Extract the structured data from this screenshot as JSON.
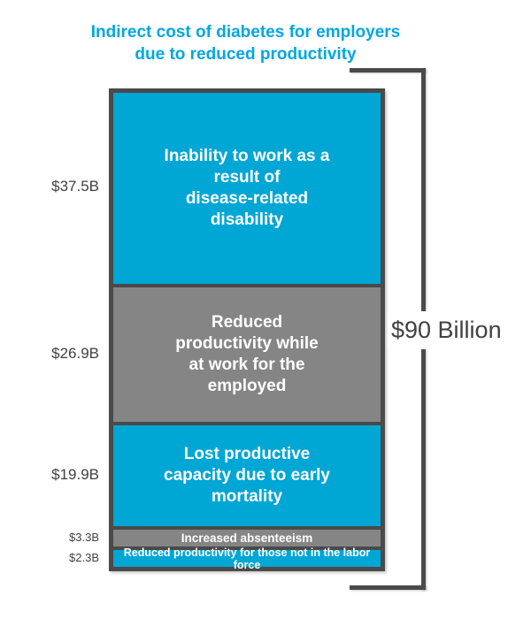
{
  "title": {
    "lines": [
      "Indirect cost of diabetes for employers",
      "due to reduced productivity"
    ],
    "text": "Indirect cost of diabetes for employers due to reduced productivity"
  },
  "colors": {
    "cyan": "#00A6D4",
    "cyan_title": "#00A7DF",
    "gray": "#858585",
    "dark_border": "#4A4A4A",
    "dark_text": "#414141",
    "segment_text": "#FFFFFF"
  },
  "chart_data": {
    "type": "bar",
    "variant": "single-column-stacked",
    "title": "Indirect cost of diabetes for employers due to reduced productivity",
    "unit": "USD billions",
    "total": 90,
    "total_label": "$90 Billion",
    "legend_position": "none",
    "grid": false,
    "segments": [
      {
        "value": 37.5,
        "value_label": "$37.5B",
        "label": "Inability to work as a result of disease-related disability",
        "lines": [
          "Inability to work as a",
          "result of",
          "disease-related",
          "disability"
        ],
        "color_key": "cyan"
      },
      {
        "value": 26.9,
        "value_label": "$26.9B",
        "label": "Reduced productivity while at work for the employed",
        "lines": [
          "Reduced",
          "productivity while",
          "at work for the",
          "employed"
        ],
        "color_key": "gray"
      },
      {
        "value": 19.9,
        "value_label": "$19.9B",
        "label": "Lost productive capacity due to early mortality",
        "lines": [
          "Lost productive",
          "capacity due to early",
          "mortality"
        ],
        "color_key": "cyan"
      },
      {
        "value": 3.3,
        "value_label": "$3.3B",
        "label": "Increased absenteeism",
        "lines": [
          "Increased absenteeism"
        ],
        "color_key": "gray"
      },
      {
        "value": 2.3,
        "value_label": "$2.3B",
        "label": "Reduced productivity for those not in the labor force",
        "lines": [
          "Reduced productivity for those not in the labor force"
        ],
        "color_key": "cyan"
      }
    ]
  }
}
